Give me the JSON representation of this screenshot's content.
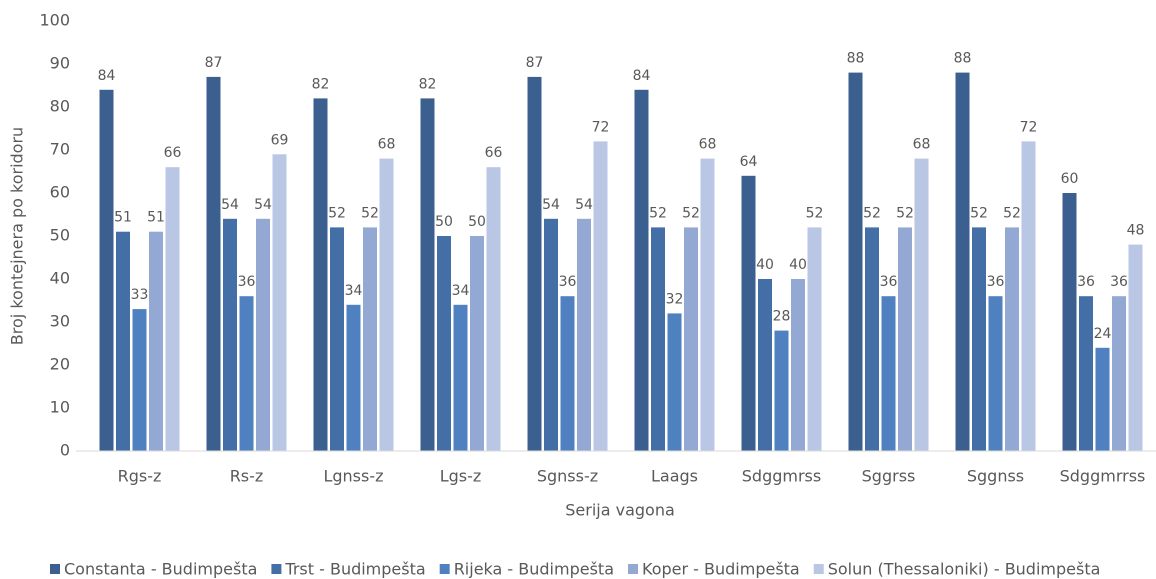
{
  "chart_data": {
    "type": "bar",
    "x_label": "Serija vagona",
    "y_label": "Broj kontejnera po koridoru",
    "categories": [
      "Rgs-z",
      "Rs-z",
      "Lgnss-z",
      "Lgs-z",
      "Sgnss-z",
      "Laags",
      "Sdggmrss",
      "Sggrss",
      "Sggnss",
      "Sdggmrrss"
    ],
    "series": [
      {
        "name": "Constanta - Budimpešta",
        "color": "#3b5f8e",
        "values": [
          84,
          87,
          82,
          82,
          87,
          84,
          64,
          88,
          88,
          60
        ]
      },
      {
        "name": "Trst - Budimpešta",
        "color": "#436fa6",
        "values": [
          51,
          54,
          52,
          50,
          54,
          52,
          40,
          52,
          52,
          36
        ]
      },
      {
        "name": "Rijeka - Budimpešta",
        "color": "#4f80c0",
        "values": [
          33,
          36,
          34,
          34,
          36,
          32,
          28,
          36,
          36,
          24
        ]
      },
      {
        "name": "Koper - Budimpešta",
        "color": "#93a9d3",
        "values": [
          51,
          54,
          52,
          50,
          54,
          52,
          40,
          52,
          52,
          36
        ]
      },
      {
        "name": "Solun (Thessaloniki) - Budimpešta",
        "color": "#b9c6e4",
        "values": [
          66,
          69,
          68,
          66,
          72,
          68,
          52,
          68,
          72,
          48
        ]
      }
    ],
    "ylim": [
      0,
      100
    ],
    "yticks": [
      0,
      10,
      20,
      30,
      40,
      50,
      60,
      70,
      80,
      90,
      100
    ],
    "grid": false,
    "legend": "bottom"
  }
}
